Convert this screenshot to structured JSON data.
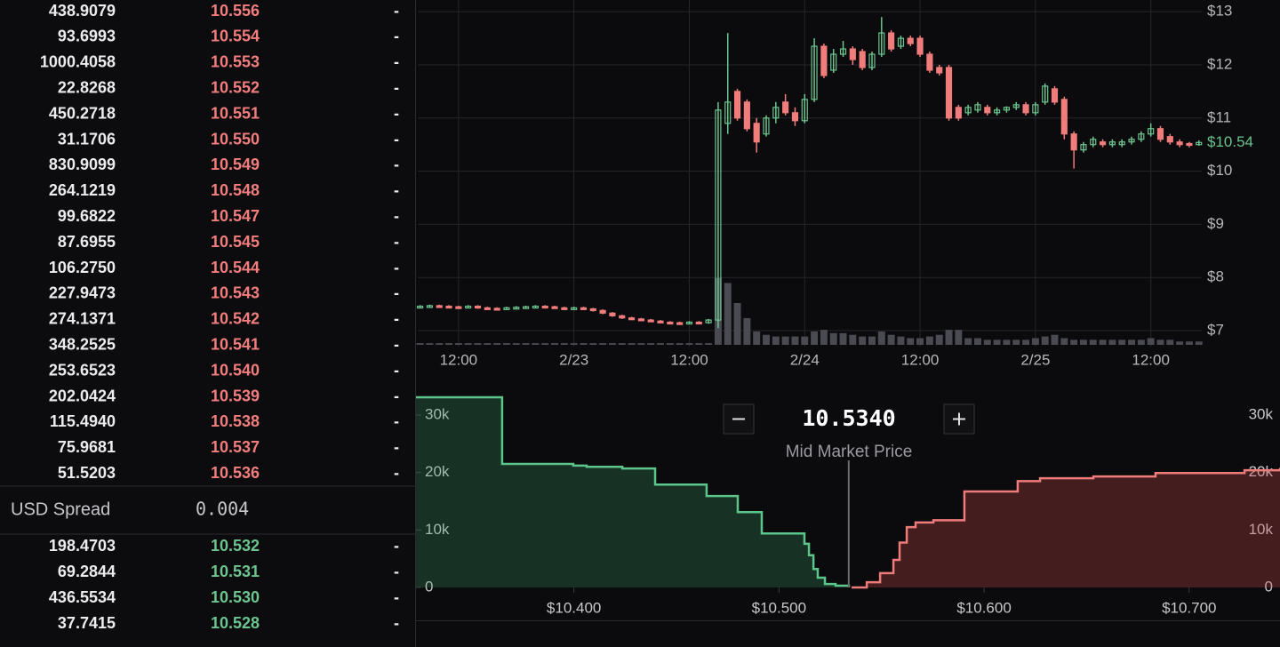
{
  "order_book": {
    "asks": [
      [
        "438.9079",
        "10.556",
        "-"
      ],
      [
        "93.6993",
        "10.554",
        "-"
      ],
      [
        "1000.4058",
        "10.553",
        "-"
      ],
      [
        "22.8268",
        "10.552",
        "-"
      ],
      [
        "450.2718",
        "10.551",
        "-"
      ],
      [
        "31.1706",
        "10.550",
        "-"
      ],
      [
        "830.9099",
        "10.549",
        "-"
      ],
      [
        "264.1219",
        "10.548",
        "-"
      ],
      [
        "99.6822",
        "10.547",
        "-"
      ],
      [
        "87.6955",
        "10.545",
        "-"
      ],
      [
        "106.2750",
        "10.544",
        "-"
      ],
      [
        "227.9473",
        "10.543",
        "-"
      ],
      [
        "274.1371",
        "10.542",
        "-"
      ],
      [
        "348.2525",
        "10.541",
        "-"
      ],
      [
        "253.6523",
        "10.540",
        "-"
      ],
      [
        "202.0424",
        "10.539",
        "-"
      ],
      [
        "115.4940",
        "10.538",
        "-"
      ],
      [
        "75.9681",
        "10.537",
        "-"
      ],
      [
        "51.5203",
        "10.536",
        "-"
      ]
    ],
    "spread": {
      "label": "USD Spread",
      "value": "0.004"
    },
    "bids": [
      [
        "198.4703",
        "10.532",
        "-"
      ],
      [
        "69.2844",
        "10.531",
        "-"
      ],
      [
        "436.5534",
        "10.530",
        "-"
      ],
      [
        "37.7415",
        "10.528",
        "-"
      ]
    ]
  },
  "chart_data": [
    {
      "type": "candlestick",
      "up_color": "#6cc48f",
      "down_color": "#f07c7c",
      "volume_color": "#4a4a52",
      "grid": true,
      "x": [
        8,
        9,
        10,
        11,
        12,
        13,
        14,
        15,
        16,
        17,
        18,
        19,
        20,
        21,
        22,
        23,
        24,
        25,
        26,
        27,
        28,
        29,
        30,
        31,
        32,
        33,
        34,
        35,
        36,
        37,
        38,
        39,
        40,
        41,
        42,
        43,
        44,
        45,
        46,
        47,
        48,
        49,
        50,
        51,
        52,
        53,
        54,
        55,
        56,
        57,
        58,
        59,
        60,
        61,
        62,
        63,
        64,
        65,
        66,
        67,
        68,
        69,
        70,
        71,
        72,
        73,
        74,
        75,
        76,
        77,
        78,
        79,
        80,
        81,
        82,
        83,
        84,
        85,
        86,
        87,
        88,
        89
      ],
      "open": [
        7.45,
        7.46,
        7.47,
        7.46,
        7.45,
        7.44,
        7.46,
        7.43,
        7.42,
        7.41,
        7.43,
        7.44,
        7.45,
        7.46,
        7.45,
        7.43,
        7.42,
        7.43,
        7.41,
        7.38,
        7.33,
        7.28,
        7.24,
        7.22,
        7.2,
        7.18,
        7.16,
        7.15,
        7.14,
        7.16,
        7.15,
        7.2,
        10.9,
        11.5,
        11.3,
        10.9,
        10.7,
        11.0,
        11.3,
        11.1,
        10.95,
        11.35,
        12.35,
        11.9,
        12.2,
        12.3,
        12.25,
        11.95,
        12.2,
        12.6,
        12.35,
        12.5,
        12.5,
        12.2,
        11.95,
        11.95,
        11.2,
        11.1,
        11.15,
        11.2,
        11.1,
        11.15,
        11.2,
        11.25,
        11.1,
        11.3,
        11.55,
        11.35,
        10.7,
        10.4,
        10.5,
        10.55,
        10.5,
        10.5,
        10.55,
        10.6,
        10.7,
        10.8,
        10.65,
        10.55,
        10.52,
        10.5
      ],
      "high": [
        7.48,
        7.49,
        7.49,
        7.48,
        7.47,
        7.48,
        7.48,
        7.45,
        7.44,
        7.45,
        7.46,
        7.47,
        7.48,
        7.48,
        7.47,
        7.45,
        7.45,
        7.45,
        7.43,
        7.4,
        7.35,
        7.3,
        7.26,
        7.24,
        7.22,
        7.2,
        7.18,
        7.17,
        7.18,
        7.18,
        7.22,
        11.3,
        12.6,
        11.55,
        11.35,
        11.0,
        11.05,
        11.3,
        11.45,
        11.2,
        11.45,
        12.5,
        12.4,
        12.3,
        12.45,
        12.35,
        12.3,
        12.25,
        12.9,
        12.65,
        12.55,
        12.55,
        12.55,
        12.25,
        12.0,
        12.0,
        11.25,
        11.25,
        11.3,
        11.25,
        11.2,
        11.22,
        11.3,
        11.3,
        11.3,
        11.65,
        11.6,
        11.4,
        10.75,
        10.55,
        10.65,
        10.6,
        10.6,
        10.6,
        10.65,
        10.75,
        10.9,
        10.85,
        10.7,
        10.6,
        10.55,
        10.58
      ],
      "low": [
        7.43,
        7.44,
        7.44,
        7.43,
        7.42,
        7.42,
        7.41,
        7.4,
        7.39,
        7.39,
        7.41,
        7.42,
        7.43,
        7.43,
        7.41,
        7.4,
        7.4,
        7.39,
        7.36,
        7.31,
        7.26,
        7.22,
        7.2,
        7.18,
        7.16,
        7.14,
        7.13,
        7.12,
        7.12,
        7.13,
        7.13,
        7.05,
        10.7,
        10.95,
        10.75,
        10.35,
        10.65,
        10.9,
        11.05,
        10.85,
        10.9,
        11.3,
        11.75,
        11.85,
        12.15,
        12.0,
        11.9,
        11.9,
        12.15,
        12.25,
        12.3,
        12.35,
        12.15,
        11.85,
        11.8,
        10.95,
        10.95,
        11.05,
        11.1,
        11.05,
        11.05,
        11.1,
        11.15,
        11.05,
        11.05,
        11.25,
        11.25,
        10.6,
        10.05,
        10.35,
        10.45,
        10.45,
        10.45,
        10.45,
        10.5,
        10.55,
        10.65,
        10.55,
        10.5,
        10.45,
        10.45,
        10.48
      ],
      "close": [
        7.46,
        7.47,
        7.46,
        7.45,
        7.44,
        7.46,
        7.43,
        7.42,
        7.41,
        7.43,
        7.44,
        7.45,
        7.46,
        7.45,
        7.43,
        7.42,
        7.43,
        7.41,
        7.38,
        7.33,
        7.28,
        7.24,
        7.22,
        7.2,
        7.18,
        7.16,
        7.15,
        7.14,
        7.16,
        7.15,
        7.2,
        11.15,
        11.3,
        11.0,
        10.8,
        10.55,
        11.0,
        11.2,
        11.1,
        10.95,
        11.35,
        12.35,
        11.8,
        12.2,
        12.3,
        12.1,
        11.95,
        12.2,
        12.6,
        12.3,
        12.5,
        12.4,
        12.2,
        11.9,
        11.85,
        11.0,
        11.0,
        11.2,
        11.25,
        11.1,
        11.15,
        11.2,
        11.25,
        11.1,
        11.25,
        11.6,
        11.3,
        10.7,
        10.4,
        10.5,
        10.6,
        10.5,
        10.55,
        10.55,
        10.6,
        10.7,
        10.8,
        10.6,
        10.55,
        10.5,
        10.5,
        10.54
      ],
      "volume": [
        0.1,
        0.1,
        0.1,
        0.1,
        0.1,
        0.1,
        0.1,
        0.1,
        0.1,
        0.1,
        0.1,
        0.1,
        0.1,
        0.1,
        0.1,
        0.1,
        0.1,
        0.1,
        0.1,
        0.1,
        0.1,
        0.1,
        0.1,
        0.1,
        0.1,
        0.1,
        0.1,
        0.1,
        0.1,
        0.1,
        0.1,
        4.0,
        3.7,
        2.5,
        1.6,
        0.8,
        0.6,
        0.5,
        0.5,
        0.5,
        0.5,
        0.8,
        0.9,
        0.7,
        0.7,
        0.6,
        0.5,
        0.5,
        0.8,
        0.6,
        0.5,
        0.4,
        0.4,
        0.5,
        0.6,
        0.9,
        0.9,
        0.4,
        0.4,
        0.3,
        0.3,
        0.3,
        0.3,
        0.3,
        0.4,
        0.5,
        0.6,
        0.4,
        0.3,
        0.3,
        0.3,
        0.3,
        0.3,
        0.3,
        0.3,
        0.3,
        0.4,
        0.3,
        0.3,
        0.2,
        0.2,
        0.2
      ],
      "xlim": [
        7.76,
        89.3
      ],
      "ylim": [
        6.7,
        13.22
      ],
      "vlim": [
        0,
        5
      ],
      "xticks": [
        {
          "value": 12,
          "label": "12:00"
        },
        {
          "value": 24,
          "label": "2/23"
        },
        {
          "value": 36,
          "label": "12:00"
        },
        {
          "value": 48,
          "label": "2/24"
        },
        {
          "value": 60,
          "label": "12:00"
        },
        {
          "value": 72,
          "label": "2/25"
        },
        {
          "value": 84,
          "label": "12:00"
        }
      ],
      "yticks": [
        {
          "value": 13,
          "label": "$13"
        },
        {
          "value": 12,
          "label": "$12"
        },
        {
          "value": 11,
          "label": "$11"
        },
        {
          "value": 10,
          "label": "$10"
        },
        {
          "value": 9,
          "label": "$9"
        },
        {
          "value": 8,
          "label": "$8"
        },
        {
          "value": 7,
          "label": "$7"
        }
      ],
      "last_price": {
        "value": 10.54,
        "label": "$10.54"
      }
    },
    {
      "type": "depth",
      "mid_price": {
        "value": 10.534,
        "label": "10.5340"
      },
      "mid_price_label": "Mid Market Price",
      "bids": {
        "color": "#5cc58a",
        "x": [
          10.323,
          10.365,
          10.3997,
          10.4062,
          10.4236,
          10.4396,
          10.4647,
          10.4799,
          10.4916,
          10.5124,
          10.5146,
          10.5168,
          10.5189,
          10.5224,
          10.5276,
          10.5341
        ],
        "values": [
          33100,
          21500,
          21200,
          21000,
          20700,
          17900,
          15900,
          13100,
          9400,
          7600,
          5600,
          3200,
          1700,
          600,
          300,
          0
        ]
      },
      "asks": {
        "color": "#f07b7b",
        "x": [
          10.5354,
          10.5428,
          10.5493,
          10.5558,
          10.5588,
          10.5623,
          10.5666,
          10.5753,
          10.5904,
          10.6164,
          10.6273,
          10.6533,
          10.6836,
          10.727,
          10.7443
        ],
        "values": [
          0,
          900,
          2500,
          4800,
          7800,
          10500,
          11300,
          11700,
          16700,
          18500,
          19000,
          19300,
          19900,
          20400,
          20800
        ]
      },
      "xlim": [
        10.323,
        10.7443
      ],
      "ylim": [
        0,
        33400
      ],
      "xticks": [
        {
          "value": 10.4,
          "label": "$10.400"
        },
        {
          "value": 10.5,
          "label": "$10.500"
        },
        {
          "value": 10.6,
          "label": "$10.600"
        },
        {
          "value": 10.7,
          "label": "$10.700"
        }
      ],
      "yticks": [
        {
          "value": 30000,
          "label": "30k"
        },
        {
          "value": 20000,
          "label": "20k"
        },
        {
          "value": 10000,
          "label": "10k"
        },
        0
      ]
    }
  ]
}
